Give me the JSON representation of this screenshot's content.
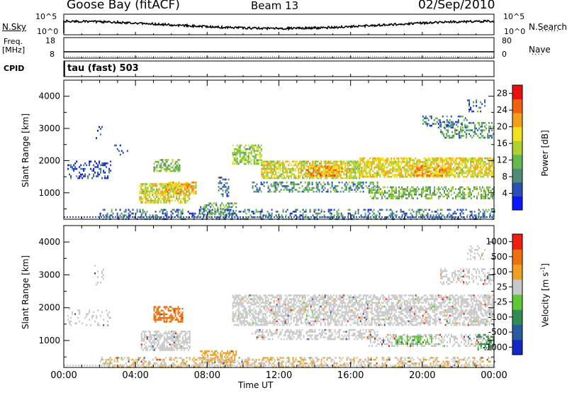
{
  "header": {
    "station": "Goose Bay (fitACF)",
    "beam": "Beam 13",
    "date": "02/Sep/2010"
  },
  "top_panels": {
    "nsky_label": "N.Sky",
    "nsky_ticks": [
      "10^5",
      "10^0"
    ],
    "nsearch_label": "N.Search",
    "nsearch_ticks": [
      "10^5",
      "10^0"
    ],
    "freq_label_1": "Freq.",
    "freq_label_2": "[MHz]",
    "freq_ticks": [
      "18",
      "8"
    ],
    "nave_label": "Nave",
    "nave_ticks": [
      "80",
      "0"
    ],
    "cpid_label": "CPID",
    "cpid_text": "tau (fast) 503"
  },
  "chart_data": [
    {
      "type": "heatmap",
      "title": "",
      "xlabel": "Time UT",
      "ylabel": "Slant Range [km]",
      "x_ticks": [
        "00:00",
        "04:00",
        "08:00",
        "12:00",
        "16:00",
        "20:00",
        "00:00"
      ],
      "y_ticks": [
        1000,
        2000,
        3000,
        4000
      ],
      "ylim": [
        180,
        4500
      ],
      "colorbar_label": "Power [dB]",
      "colorbar_ticks": [
        4,
        8,
        12,
        16,
        20,
        24,
        28
      ],
      "colorbar_colors": [
        "#0a16ff",
        "#2a50b8",
        "#4f8c78",
        "#63b84e",
        "#b0d030",
        "#f0e020",
        "#f0a018",
        "#f06010",
        "#e81010"
      ],
      "colorbar_range": [
        0,
        30
      ],
      "regions": [
        {
          "t0": 1.7,
          "t1": 2.2,
          "r0": 2650,
          "r1": 3300,
          "v": 4,
          "d": 0.12
        },
        {
          "t0": 2.8,
          "t1": 3.6,
          "r0": 2200,
          "r1": 2500,
          "v": 4,
          "d": 0.12
        },
        {
          "t0": 0.2,
          "t1": 2.6,
          "r0": 1450,
          "r1": 2000,
          "v": 4,
          "d": 0.3
        },
        {
          "t0": 4.2,
          "t1": 7.0,
          "r0": 700,
          "r1": 1300,
          "v": 17,
          "d": 0.7
        },
        {
          "t0": 5.0,
          "t1": 6.5,
          "r0": 1700,
          "r1": 2050,
          "v": 12,
          "d": 0.6
        },
        {
          "t0": 5.6,
          "t1": 7.4,
          "r0": 1000,
          "r1": 1350,
          "v": 20,
          "d": 0.6
        },
        {
          "t0": 9.4,
          "t1": 11.0,
          "r0": 1900,
          "r1": 2500,
          "v": 14,
          "d": 0.6
        },
        {
          "t0": 11.0,
          "t1": 16.5,
          "r0": 1450,
          "r1": 2000,
          "v": 17,
          "d": 0.75
        },
        {
          "t0": 13.5,
          "t1": 15.5,
          "r0": 1550,
          "r1": 1850,
          "v": 22,
          "d": 0.7
        },
        {
          "t0": 16.5,
          "t1": 24.0,
          "r0": 1500,
          "r1": 2100,
          "v": 18,
          "d": 0.75
        },
        {
          "t0": 19.5,
          "t1": 21.5,
          "r0": 1550,
          "r1": 1850,
          "v": 21,
          "d": 0.6
        },
        {
          "t0": 10.5,
          "t1": 17.5,
          "r0": 1050,
          "r1": 1350,
          "v": 9,
          "d": 0.45
        },
        {
          "t0": 17.0,
          "t1": 24.0,
          "r0": 850,
          "r1": 1200,
          "v": 12,
          "d": 0.5
        },
        {
          "t0": 21.0,
          "t1": 24.0,
          "r0": 2700,
          "r1": 3200,
          "v": 9,
          "d": 0.4
        },
        {
          "t0": 20.0,
          "t1": 22.5,
          "r0": 3050,
          "r1": 3400,
          "v": 8,
          "d": 0.3
        },
        {
          "t0": 7.6,
          "t1": 9.6,
          "r0": 350,
          "r1": 700,
          "v": 11,
          "d": 0.5
        },
        {
          "t0": 2.0,
          "t1": 24.0,
          "r0": 180,
          "r1": 500,
          "v": 7,
          "d": 0.35
        },
        {
          "t0": 8.6,
          "t1": 9.2,
          "r0": 900,
          "r1": 1500,
          "v": 6,
          "d": 0.35
        },
        {
          "t0": 22.5,
          "t1": 23.5,
          "r0": 3500,
          "r1": 3900,
          "v": 6,
          "d": 0.25
        }
      ]
    },
    {
      "type": "heatmap",
      "title": "",
      "xlabel": "Time UT",
      "ylabel": "Slant Range [km]",
      "x_ticks": [
        "00:00",
        "04:00",
        "08:00",
        "12:00",
        "16:00",
        "20:00",
        "00:00"
      ],
      "y_ticks": [
        1000,
        2000,
        3000,
        4000
      ],
      "ylim": [
        180,
        4500
      ],
      "colorbar_label": "Velocity [m s^-1]",
      "colorbar_ticks": [
        "1000",
        "500",
        "100",
        "25",
        "-25",
        "-100",
        "-500",
        "-1000"
      ],
      "colorbar_colors": [
        "#1428c8",
        "#2a5aa0",
        "#308c50",
        "#5ec838",
        "#c8c8c8",
        "#f0a020",
        "#f07010",
        "#f02010"
      ],
      "regions": [
        {
          "t0": 1.7,
          "t1": 2.2,
          "r0": 2650,
          "r1": 3300,
          "v": "#c8c8c8",
          "d": 0.1
        },
        {
          "t0": 0.2,
          "t1": 2.6,
          "r0": 1450,
          "r1": 2000,
          "v": "#c8c8c8",
          "d": 0.2
        },
        {
          "t0": 4.3,
          "t1": 7.0,
          "r0": 700,
          "r1": 1300,
          "v": "#c8c8c8",
          "d": 0.65
        },
        {
          "t0": 5.0,
          "t1": 6.6,
          "r0": 1550,
          "r1": 2050,
          "v": "#f07010",
          "d": 0.6
        },
        {
          "t0": 9.4,
          "t1": 24.0,
          "r0": 1450,
          "r1": 2400,
          "v": "#c8c8c8",
          "d": 0.6
        },
        {
          "t0": 10.5,
          "t1": 17.5,
          "r0": 1050,
          "r1": 1350,
          "v": "#c8c8c8",
          "d": 0.45
        },
        {
          "t0": 17.0,
          "t1": 24.0,
          "r0": 850,
          "r1": 1200,
          "v": "#c8c8c8",
          "d": 0.4
        },
        {
          "t0": 18.5,
          "t1": 20.5,
          "r0": 900,
          "r1": 1150,
          "v": "#5ec838",
          "d": 0.4
        },
        {
          "t0": 23.0,
          "t1": 24.0,
          "r0": 750,
          "r1": 1200,
          "v": "#308c50",
          "d": 0.5
        },
        {
          "t0": 21.0,
          "t1": 24.0,
          "r0": 2700,
          "r1": 3200,
          "v": "#c8c8c8",
          "d": 0.4
        },
        {
          "t0": 7.6,
          "t1": 9.6,
          "r0": 350,
          "r1": 700,
          "v": "#f0a020",
          "d": 0.5
        },
        {
          "t0": 2.0,
          "t1": 24.0,
          "r0": 180,
          "r1": 500,
          "v": "#f0a020",
          "d": 0.25
        },
        {
          "t0": 2.0,
          "t1": 24.0,
          "r0": 180,
          "r1": 500,
          "v": "#c8c8c8",
          "d": 0.2
        },
        {
          "t0": 22.5,
          "t1": 23.5,
          "r0": 3500,
          "r1": 3900,
          "v": "#c8c8c8",
          "d": 0.25
        }
      ]
    }
  ]
}
